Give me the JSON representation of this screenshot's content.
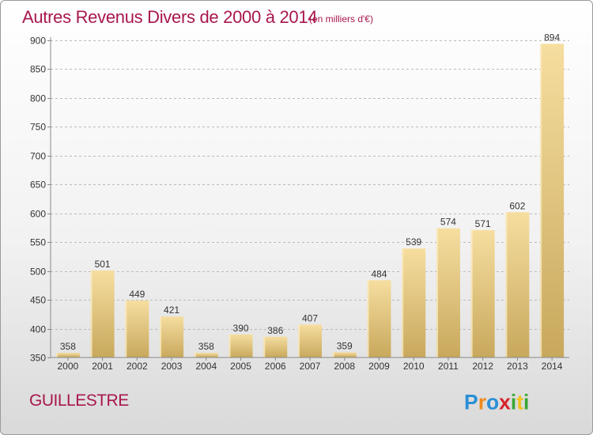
{
  "chart_data": {
    "type": "bar",
    "title": "Autres Revenus Divers de 2000 à 2014",
    "subtitle": "(en milliers d'€)",
    "xlabel": "",
    "ylabel": "",
    "categories": [
      "2000",
      "2001",
      "2002",
      "2003",
      "2004",
      "2005",
      "2006",
      "2007",
      "2008",
      "2009",
      "2010",
      "2011",
      "2012",
      "2013",
      "2014"
    ],
    "values": [
      358,
      501,
      449,
      421,
      358,
      390,
      386,
      407,
      359,
      484,
      539,
      574,
      571,
      602,
      894
    ],
    "value_labels": [
      "358",
      "501",
      "449",
      "421",
      "358",
      "390",
      "386",
      "407",
      "359",
      "484",
      "539",
      "574",
      "571",
      "602",
      "894"
    ],
    "ylim": [
      350,
      900
    ],
    "yticks": [
      350,
      400,
      450,
      500,
      550,
      600,
      650,
      700,
      750,
      800,
      850,
      900
    ],
    "grid": "horizontal dashed",
    "legend": "none",
    "colors": {
      "bar_light": "#f6dea0",
      "bar_dark": "#c8a85c",
      "title": "#a8174e",
      "text": "#333333",
      "grid": "#bbbbbb"
    }
  },
  "commune": "GUILLESTRE",
  "logo": {
    "icon": "proxiti-logo",
    "text": "Proxiti"
  }
}
